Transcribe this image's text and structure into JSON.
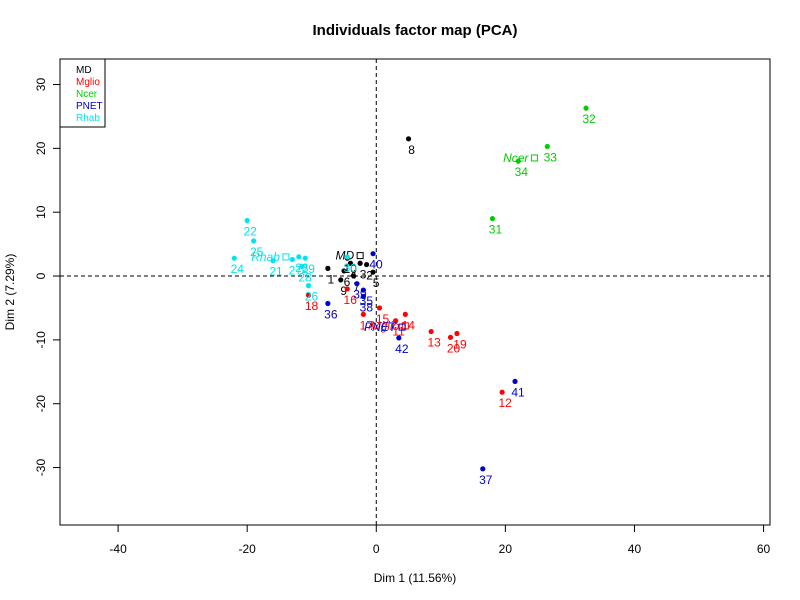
{
  "chart_data": {
    "type": "scatter",
    "title": "Individuals factor map (PCA)",
    "xlabel": "Dim 1 (11.56%)",
    "ylabel": "Dim 2 (7.29%)",
    "xlim": [
      -49,
      61
    ],
    "ylim": [
      -39,
      34
    ],
    "xticks": [
      -40,
      -20,
      0,
      20,
      40,
      60
    ],
    "yticks": [
      -30,
      -20,
      -10,
      0,
      10,
      20,
      30
    ],
    "grid": false,
    "legend_position": "top-left",
    "reference_lines": {
      "x": 0,
      "y": 0
    },
    "groups": [
      {
        "name": "MD",
        "color": "#000000",
        "centroid": {
          "label": "MD",
          "x": -2.5,
          "y": 3.2
        },
        "points": [
          {
            "id": "1",
            "x": -7.5,
            "y": 1.2
          },
          {
            "id": "2",
            "x": -1.5,
            "y": 1.8
          },
          {
            "id": "3",
            "x": -2.5,
            "y": 2.0
          },
          {
            "id": "4",
            "x": -4.0,
            "y": 2.0
          },
          {
            "id": "5",
            "x": -0.5,
            "y": 0.6
          },
          {
            "id": "6",
            "x": -5.0,
            "y": 0.8
          },
          {
            "id": "7",
            "x": -3.5,
            "y": 0.0
          },
          {
            "id": "8",
            "x": 5.0,
            "y": 21.5
          },
          {
            "id": "9",
            "x": -5.5,
            "y": -0.6
          },
          {
            "id": "10",
            "x": -4.5,
            "y": 2.8
          }
        ]
      },
      {
        "name": "Mglio",
        "color": "#ff0000",
        "centroid": {
          "label": "Mglio",
          "x": 4.5,
          "y": -7.8
        },
        "points": [
          {
            "id": "11",
            "x": 3.0,
            "y": -7.0
          },
          {
            "id": "12",
            "x": 19.5,
            "y": -18.2
          },
          {
            "id": "13",
            "x": 8.5,
            "y": -8.7
          },
          {
            "id": "14",
            "x": 4.5,
            "y": -6.0
          },
          {
            "id": "15",
            "x": 0.5,
            "y": -5.0
          },
          {
            "id": "16",
            "x": -4.5,
            "y": -2.0
          },
          {
            "id": "17",
            "x": -2.0,
            "y": -6.0
          },
          {
            "id": "18",
            "x": -10.5,
            "y": -3.0
          },
          {
            "id": "19",
            "x": 12.5,
            "y": -9.0
          },
          {
            "id": "20",
            "x": 11.5,
            "y": -9.6
          }
        ]
      },
      {
        "name": "Ncer",
        "color": "#00cd00",
        "centroid": {
          "label": "Ncer",
          "x": 24.5,
          "y": 18.5
        },
        "points": [
          {
            "id": "31",
            "x": 18.0,
            "y": 9.0
          },
          {
            "id": "32",
            "x": 32.5,
            "y": 26.3
          },
          {
            "id": "33",
            "x": 26.5,
            "y": 20.3
          },
          {
            "id": "34",
            "x": 22.0,
            "y": 18.0
          }
        ]
      },
      {
        "name": "PNET",
        "color": "#0000cd",
        "centroid": {
          "label": "PNET",
          "x": 4.0,
          "y": -8.0
        },
        "points": [
          {
            "id": "35",
            "x": -2.0,
            "y": -2.2
          },
          {
            "id": "36",
            "x": -7.5,
            "y": -4.3
          },
          {
            "id": "37",
            "x": 16.5,
            "y": -30.2
          },
          {
            "id": "38",
            "x": -2.0,
            "y": -3.2
          },
          {
            "id": "39",
            "x": -3.0,
            "y": -1.2
          },
          {
            "id": "40",
            "x": -0.5,
            "y": 3.5
          },
          {
            "id": "41",
            "x": 21.5,
            "y": -16.5
          },
          {
            "id": "42",
            "x": 3.5,
            "y": -9.7
          }
        ]
      },
      {
        "name": "Rhab",
        "color": "#00e5ee",
        "centroid": {
          "label": "Rhab",
          "x": -14.0,
          "y": 3.0
        },
        "points": [
          {
            "id": "21",
            "x": -16.0,
            "y": 2.4
          },
          {
            "id": "22",
            "x": -20.0,
            "y": 8.7
          },
          {
            "id": "23",
            "x": -12.0,
            "y": 3.0
          },
          {
            "id": "24",
            "x": -22.0,
            "y": 2.8
          },
          {
            "id": "25",
            "x": -19.0,
            "y": 5.5
          },
          {
            "id": "26",
            "x": -10.5,
            "y": -1.5
          },
          {
            "id": "27",
            "x": -13.0,
            "y": 2.6
          },
          {
            "id": "28",
            "x": -11.5,
            "y": 1.5
          },
          {
            "id": "29",
            "x": -11.0,
            "y": 2.8
          },
          {
            "id": "30",
            "x": -4.5,
            "y": 3.0
          }
        ]
      }
    ]
  }
}
